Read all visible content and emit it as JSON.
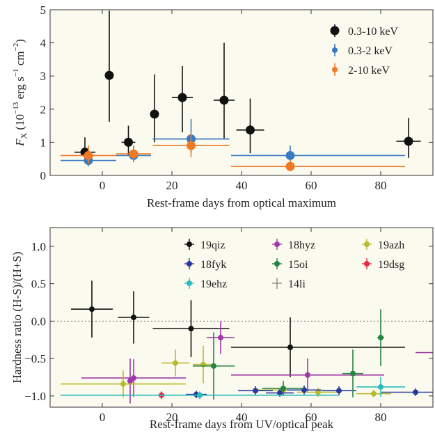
{
  "chart_data": [
    {
      "type": "scatter",
      "xlabel": "Rest-frame days from optical maximum",
      "ylabel": "F_X (10^-13 erg s^-1 cm^-2)",
      "ylabel_parts": {
        "main": "F",
        "sub": "X",
        "open": " (10",
        "exp1": "−13",
        "unit1": " erg s",
        "exp2": "−1",
        "unit2": " cm",
        "exp3": "−2",
        "close": ")"
      },
      "xlim": [
        -15,
        95
      ],
      "ylim": [
        0,
        5
      ],
      "xticks": [
        "0",
        "20",
        "40",
        "60",
        "80"
      ],
      "yticks": [
        "0",
        "1",
        "2",
        "3",
        "4",
        "5"
      ],
      "legend_position": "top-right",
      "background": "#fbfaef",
      "series": [
        {
          "name": "0.3-10 keV",
          "color": "#111111",
          "points": [
            {
              "x": -5,
              "y": 0.7,
              "xerr": [
                3,
                3
              ],
              "yerr": [
                0.3,
                0.45
              ]
            },
            {
              "x": 2,
              "y": 3.02,
              "xerr": [
                0,
                0
              ],
              "yerr": [
                1.4,
                1.95
              ]
            },
            {
              "x": 7.5,
              "y": 1.0,
              "xerr": [
                2,
                2
              ],
              "yerr": [
                0.4,
                0.5
              ]
            },
            {
              "x": 15,
              "y": 1.85,
              "xerr": [
                1,
                1
              ],
              "yerr": [
                0.85,
                1.2
              ]
            },
            {
              "x": 23,
              "y": 2.35,
              "xerr": [
                3,
                3
              ],
              "yerr": [
                1.05,
                0.95
              ]
            },
            {
              "x": 35,
              "y": 2.27,
              "xerr": [
                3,
                3
              ],
              "yerr": [
                1.15,
                1.73
              ]
            },
            {
              "x": 42.5,
              "y": 1.37,
              "xerr": [
                4,
                4
              ],
              "yerr": [
                0.7,
                0.95
              ]
            },
            {
              "x": 88,
              "y": 1.03,
              "xerr": [
                3.5,
                3.5
              ],
              "yerr": [
                0.5,
                0.7
              ]
            }
          ]
        },
        {
          "name": "0.3-2 keV",
          "color": "#3a7ac0",
          "points": [
            {
              "x": -4,
              "y": 0.45,
              "xerr": [
                8,
                8
              ],
              "yerr": [
                0.18,
                0.3
              ]
            },
            {
              "x": 9,
              "y": 0.6,
              "xerr": [
                5,
                5
              ],
              "yerr": [
                0.2,
                0.3
              ]
            },
            {
              "x": 25.5,
              "y": 1.1,
              "xerr": [
                11,
                11
              ],
              "yerr": [
                0.4,
                0.6
              ]
            },
            {
              "x": 54,
              "y": 0.6,
              "xerr": [
                17,
                33
              ],
              "yerr": [
                0.2,
                0.3
              ]
            }
          ]
        },
        {
          "name": "2-10 keV",
          "color": "#ef7a26",
          "points": [
            {
              "x": -4,
              "y": 0.6,
              "xerr": [
                8,
                8
              ],
              "yerr": [
                0.25,
                0.3
              ]
            },
            {
              "x": 9,
              "y": 0.65,
              "xerr": [
                5,
                5
              ],
              "yerr": [
                0.2,
                0.25
              ]
            },
            {
              "x": 25.5,
              "y": 0.9,
              "xerr": [
                11,
                11
              ],
              "yerr": [
                0.35,
                0.4
              ]
            },
            {
              "x": 54,
              "y": 0.27,
              "xerr": [
                17,
                33
              ],
              "yerr": [
                0.15,
                0.2
              ]
            }
          ]
        }
      ]
    },
    {
      "type": "scatter",
      "xlabel": "Rest-frame days from UV/optical peak",
      "ylabel": "Hardness ratio (H-S)/(H+S)",
      "xlim": [
        -15,
        95
      ],
      "ylim": [
        -1.15,
        1.25
      ],
      "xticks": [
        "0",
        "20",
        "40",
        "60",
        "80"
      ],
      "yticks": [
        "−1.0",
        "−0.5",
        "0.0",
        "0.5",
        "1.0"
      ],
      "reference_line_y": 0,
      "legend_position": "top, 3 columns",
      "background": "#fbfaef",
      "series": [
        {
          "name": "19qiz",
          "color": "#111111",
          "points": [
            {
              "x": -3,
              "y": 0.16,
              "xerr": [
                6,
                6
              ],
              "yerr": [
                0.38,
                0.38
              ]
            },
            {
              "x": 9,
              "y": 0.05,
              "xerr": [
                4.5,
                4.5
              ],
              "yerr": [
                0.35,
                0.35
              ]
            },
            {
              "x": 25.5,
              "y": -0.1,
              "xerr": [
                11,
                11
              ],
              "yerr": [
                0.38,
                0.38
              ]
            },
            {
              "x": 54,
              "y": -0.35,
              "xerr": [
                17,
                33
              ],
              "yerr": [
                0.4,
                0.4
              ]
            }
          ]
        },
        {
          "name": "18hyz",
          "color": "#a03aa8",
          "points": [
            {
              "x": 9,
              "y": -0.76,
              "xerr": [
                15,
                15
              ],
              "yerr": [
                0.25,
                0.25
              ]
            },
            {
              "x": 34,
              "y": -0.22,
              "xerr": [
                4,
                4
              ],
              "yerr": [
                0.22,
                0.22
              ]
            },
            {
              "x": 59,
              "y": -0.72,
              "xerr": [
                22,
                22
              ],
              "yerr": [
                0.22,
                0.22
              ]
            },
            {
              "x": 8,
              "y": -0.8,
              "xerr": [
                0,
                0
              ],
              "yerr": [
                0.3,
                0.3
              ]
            },
            {
              "x": 98,
              "y": -0.42,
              "xerr": [
                8,
                8
              ],
              "yerr": [
                0,
                0
              ]
            }
          ]
        },
        {
          "name": "19azh",
          "color": "#b8ba2c",
          "points": [
            {
              "x": 6,
              "y": -0.84,
              "xerr": [
                18,
                18
              ],
              "yerr": [
                0.18,
                0.18
              ]
            },
            {
              "x": 21,
              "y": -0.56,
              "xerr": [
                4,
                4
              ],
              "yerr": [
                0.18,
                0.18
              ]
            },
            {
              "x": 29,
              "y": -0.58,
              "xerr": [
                3,
                3
              ],
              "yerr": [
                0.25,
                0.25
              ]
            },
            {
              "x": 52,
              "y": -0.92,
              "xerr": [
                8,
                8
              ],
              "yerr": [
                0.08,
                0.08
              ]
            },
            {
              "x": 62,
              "y": -0.95,
              "xerr": [
                6,
                6
              ],
              "yerr": [
                0.06,
                0.06
              ]
            },
            {
              "x": 78,
              "y": -0.97,
              "xerr": [
                5,
                5
              ],
              "yerr": [
                0.05,
                0.05
              ]
            }
          ]
        },
        {
          "name": "18fyk",
          "color": "#283a9e",
          "points": [
            {
              "x": 27,
              "y": -0.98,
              "xerr": [
                3,
                3
              ],
              "yerr": [
                0.05,
                0.05
              ]
            },
            {
              "x": 44,
              "y": -0.93,
              "xerr": [
                5,
                5
              ],
              "yerr": [
                0.06,
                0.06
              ]
            },
            {
              "x": 51,
              "y": -0.96,
              "xerr": [
                4,
                4
              ],
              "yerr": [
                0.05,
                0.05
              ]
            },
            {
              "x": 58,
              "y": -0.92,
              "xerr": [
                5,
                5
              ],
              "yerr": [
                0.06,
                0.06
              ]
            },
            {
              "x": 68,
              "y": -0.93,
              "xerr": [
                5,
                5
              ],
              "yerr": [
                0.06,
                0.06
              ]
            },
            {
              "x": 90,
              "y": -0.95,
              "xerr": [
                10,
                10
              ],
              "yerr": [
                0.05,
                0.05
              ]
            }
          ]
        },
        {
          "name": "15oi",
          "color": "#238540",
          "points": [
            {
              "x": 32,
              "y": -0.6,
              "xerr": [
                6,
                6
              ],
              "yerr": [
                0.45,
                0.45
              ]
            },
            {
              "x": 52,
              "y": -0.9,
              "xerr": [
                6,
                6
              ],
              "yerr": [
                0.1,
                0.1
              ]
            },
            {
              "x": 72,
              "y": -0.7,
              "xerr": [
                3,
                3
              ],
              "yerr": [
                0.32,
                0.32
              ]
            },
            {
              "x": 80,
              "y": -0.22,
              "xerr": [
                1,
                1
              ],
              "yerr": [
                0.38,
                0.38
              ]
            }
          ]
        },
        {
          "name": "19dsg",
          "color": "#e42e48",
          "points": [
            {
              "x": 17,
              "y": -0.99,
              "xerr": [
                1,
                1
              ],
              "yerr": [
                0.05,
                0.05
              ]
            }
          ]
        },
        {
          "name": "19ehz",
          "color": "#2bbdbd",
          "points": [
            {
              "x": 28,
              "y": -0.99,
              "xerr": [
                40,
                40
              ],
              "yerr": [
                0.05,
                0.05
              ]
            },
            {
              "x": 80,
              "y": -0.88,
              "xerr": [
                7,
                7
              ],
              "yerr": [
                0.13,
                0.13
              ]
            }
          ]
        },
        {
          "name": "14li",
          "color": "#8a8a8a",
          "points": []
        }
      ]
    }
  ]
}
